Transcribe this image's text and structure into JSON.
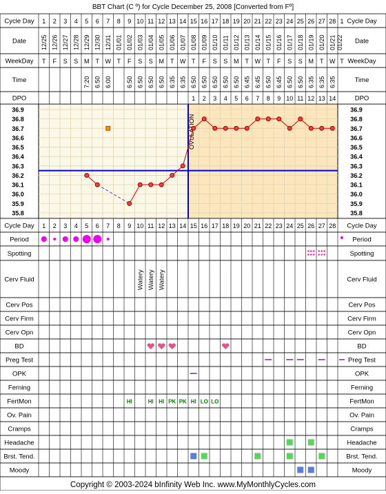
{
  "title": "BBT Chart (C º) for Cycle December 25, 2008  [Converted from Fº]",
  "footer": "Copyright © 2003-2024 bInfinity Web Inc.    www.MyMonthlyCycles.com",
  "row_labels": {
    "cycle_day": "Cycle Day",
    "date": "Date",
    "weekday": "WeekDay",
    "time": "Time",
    "dpo": "DPO",
    "period": "Period",
    "spotting": "Spotting",
    "cerv_fluid": "Cerv Fluid",
    "cerv_pos": "Cerv Pos",
    "cerv_firm": "Cerv Firm",
    "cerv_opn": "Cerv Opn",
    "bd": "BD",
    "preg_test": "Preg Test",
    "opk": "OPK",
    "ferning": "Ferning",
    "fertmon": "FertMon",
    "ov_pain": "Ov. Pain",
    "cramps": "Cramps",
    "headache": "Headache",
    "brst_tend": "Brst. Tend.",
    "moody": "Moody"
  },
  "cycle_days": [
    "1",
    "2",
    "3",
    "4",
    "5",
    "6",
    "7",
    "8",
    "9",
    "10",
    "11",
    "12",
    "13",
    "14",
    "15",
    "16",
    "17",
    "18",
    "19",
    "20",
    "21",
    "22",
    "23",
    "24",
    "25",
    "26",
    "27",
    "28"
  ],
  "next_cycle_day": "1",
  "dates": [
    "12/25",
    "12/26",
    "12/27",
    "12/28",
    "12/29",
    "12/30",
    "12/31",
    "01/01",
    "01/02",
    "01/03",
    "01/04",
    "01/05",
    "01/06",
    "01/07",
    "01/08",
    "01/09",
    "01/10",
    "01/11",
    "01/12",
    "01/13",
    "01/14",
    "01/15",
    "01/16",
    "01/17",
    "01/18",
    "01/19",
    "01/20",
    "01/21"
  ],
  "next_date": "01/22",
  "weekdays": [
    "T",
    "F",
    "S",
    "S",
    "M",
    "T",
    "W",
    "T",
    "F",
    "S",
    "S",
    "M",
    "T",
    "W",
    "T",
    "F",
    "S",
    "S",
    "M",
    "T",
    "W",
    "T",
    "F",
    "S",
    "S",
    "M",
    "T",
    "W"
  ],
  "next_weekday": "T",
  "times": [
    "",
    "",
    "",
    "",
    "7:20",
    "6:50",
    "6:00",
    "",
    "6:50",
    "6:50",
    "6:50",
    "6:50",
    "6:35",
    "6:35",
    "6:50",
    "6:50",
    "6:50",
    "6:50",
    "6:50",
    "6:45",
    "6:45",
    "6:50",
    "6:45",
    "6:50",
    "6:50",
    "6:35",
    "6:35",
    "6:35"
  ],
  "dpo": [
    "",
    "",
    "",
    "",
    "",
    "",
    "",
    "",
    "",
    "",
    "",
    "",
    "",
    "",
    "1",
    "2",
    "3",
    "4",
    "5",
    "6",
    "7",
    "8",
    "9",
    "10",
    "11",
    "12",
    "13",
    "14"
  ],
  "ovulation_label": "OVULATION",
  "chart_data": {
    "type": "line",
    "title": "BBT Chart (C º) for Cycle December 25, 2008  [Converted from Fº]",
    "x": [
      1,
      2,
      3,
      4,
      5,
      6,
      7,
      8,
      9,
      10,
      11,
      12,
      13,
      14,
      15,
      16,
      17,
      18,
      19,
      20,
      21,
      22,
      23,
      24,
      25,
      26,
      27,
      28
    ],
    "y_ticks": [
      "36.9",
      "36.8",
      "36.7",
      "36.6",
      "36.5",
      "36.4",
      "36.3",
      "36.2",
      "36.1",
      "36.0",
      "35.9",
      "35.8"
    ],
    "ylim": [
      35.8,
      36.9
    ],
    "temps": [
      null,
      null,
      null,
      null,
      36.2,
      36.1,
      null,
      null,
      35.9,
      36.1,
      36.1,
      36.1,
      36.2,
      36.3,
      36.7,
      36.8,
      36.7,
      36.7,
      36.7,
      36.7,
      36.8,
      36.8,
      36.8,
      36.7,
      36.8,
      36.7,
      36.7,
      36.7
    ],
    "dashed_segment": [
      6,
      9
    ],
    "excluded_point": {
      "day": 7,
      "temp": 36.7
    },
    "coverline": 36.25,
    "ovulation_day": 14,
    "colors": {
      "line": "#d00000",
      "point_fill": "#f04040",
      "excluded": "#ff8c00",
      "coverline": "#0000cc",
      "pre_bg": "#fcf8e8",
      "post_bg": "#fbe6bd",
      "grid": "#e0d4b0"
    }
  },
  "period": [
    2,
    1,
    2,
    2,
    3,
    3,
    1,
    0,
    0,
    0,
    0,
    0,
    0,
    0,
    0,
    0,
    0,
    0,
    0,
    0,
    0,
    0,
    0,
    0,
    0,
    0,
    0,
    0
  ],
  "next_period": 1,
  "spotting_days": [
    26,
    27
  ],
  "cerv_fluid": {
    "10": "Watery",
    "11": "Watery",
    "12": "Watery"
  },
  "bd_days": [
    11,
    12,
    13,
    18
  ],
  "preg_test_days": [
    22,
    24,
    25,
    27
  ],
  "opk_days": [
    15
  ],
  "fertmon": {
    "9": "HI",
    "11": "HI",
    "12": "HI",
    "13": "PK",
    "14": "PK",
    "15": "HI",
    "16": "LO",
    "17": "LO"
  },
  "headache_days": [
    24,
    26
  ],
  "brst_tend": {
    "15": "#5b7fd8",
    "16": "#5ad45a",
    "21": "#5ad45a",
    "24": "#5ad45a",
    "27": "#5ad45a"
  },
  "moody_days": [
    25,
    26
  ],
  "colors": {
    "period": "#ee00ee",
    "heart": "#e8508a",
    "fertmon": "#008800",
    "preg": "#8020a0",
    "spot": "#ee44aa",
    "symptom_green": "#5ad45a",
    "symptom_blue": "#5b7fd8",
    "grid": "#000000"
  }
}
